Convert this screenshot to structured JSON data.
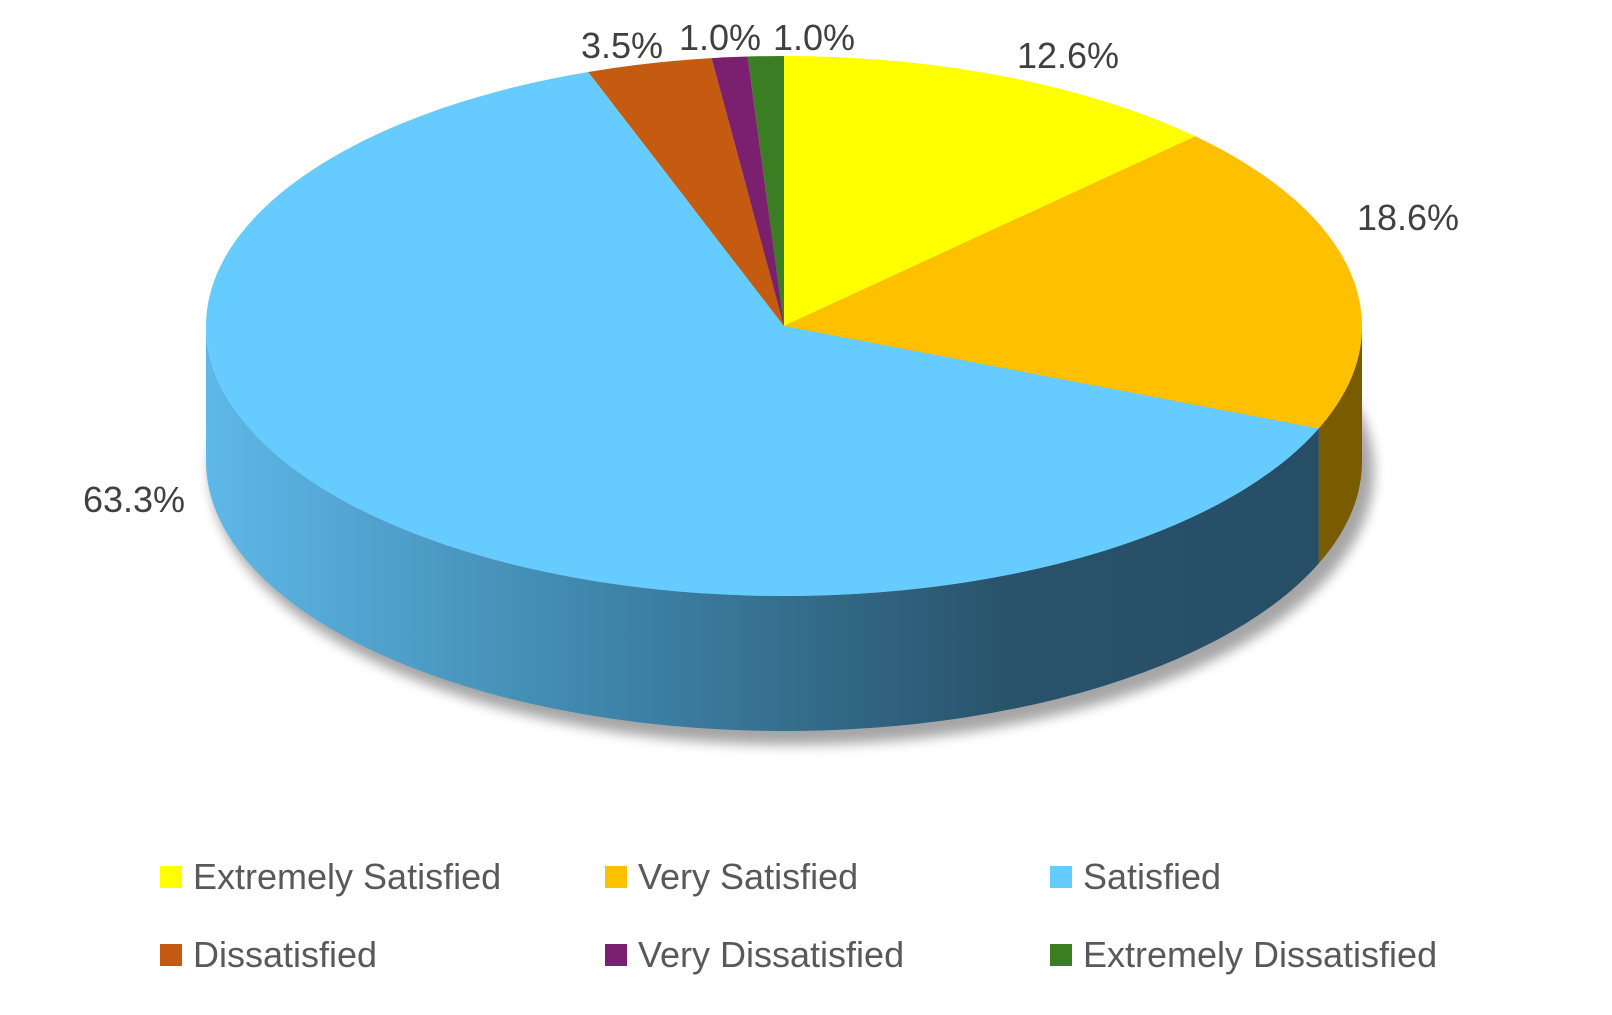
{
  "chart_data": {
    "type": "pie",
    "style": "3d",
    "categories": [
      "Extremely Satisfied",
      "Very Satisfied",
      "Satisfied",
      "Dissatisfied",
      "Very Dissatisfied",
      "Extremely Dissatisfied"
    ],
    "values": [
      12.6,
      18.6,
      63.3,
      3.5,
      1.0,
      1.0
    ],
    "labels": [
      "12.6%",
      "18.6%",
      "63.3%",
      "3.5%",
      "1.0%",
      "1.0%"
    ],
    "colors": [
      "#FFFF00",
      "#FFC000",
      "#66CCFF",
      "#C55A11",
      "#7B1F6F",
      "#3A7D22"
    ],
    "side_colors": [
      "#8A8A00",
      "#7A5C00",
      "#2C5670",
      "#6B300A",
      "#3F0F38",
      "#1E4212"
    ],
    "title": "",
    "legend_position": "bottom",
    "start_angle": "12 o'clock",
    "direction": "clockwise"
  }
}
